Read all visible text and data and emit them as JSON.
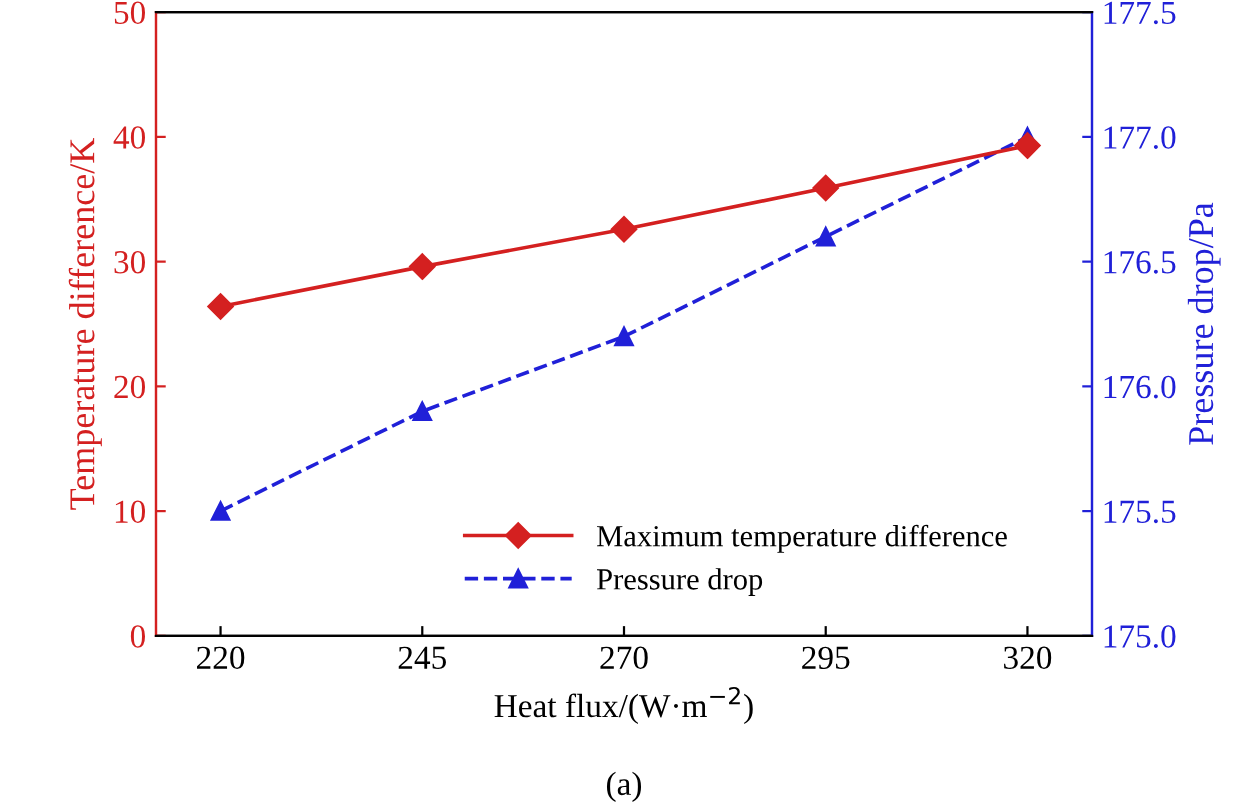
{
  "chart_data": {
    "type": "line",
    "xlabel": "Heat flux/(W·m$^{−2}$)",
    "ylabel": "Temperature difference/K",
    "y2label": "Pressure drop/Pa",
    "annotations": [
      "(a)"
    ],
    "x": [
      220,
      245,
      270,
      295,
      320
    ],
    "series": [
      {
        "name": "Maximum temperature difference",
        "color": "#d42020",
        "values": [
          26.4,
          29.6,
          32.6,
          35.9,
          39.3
        ],
        "marker": "diamond",
        "line_style": "solid"
      },
      {
        "name": "Pressure drop",
        "color": "#2020d8",
        "values": [
          175.5,
          175.9,
          176.2,
          176.6,
          177.0
        ],
        "marker": "triangle",
        "line_style": "dashed",
        "axis": "y2"
      }
    ],
    "xlim": [
      212,
      328
    ],
    "xticks": [
      220,
      245,
      270,
      295,
      320
    ],
    "ylim": [
      0,
      50
    ],
    "yticks": [
      0,
      10,
      20,
      30,
      40,
      50
    ],
    "y2lim": [
      175,
      177.5
    ],
    "y2ticks": [
      {
        "value": 175,
        "label": "175.0"
      },
      175.5,
      {
        "value": 176,
        "label": "176.0"
      },
      176.5,
      {
        "value": 177,
        "label": "177.0"
      },
      177.5
    ],
    "grid": false,
    "legend": "bottom"
  }
}
